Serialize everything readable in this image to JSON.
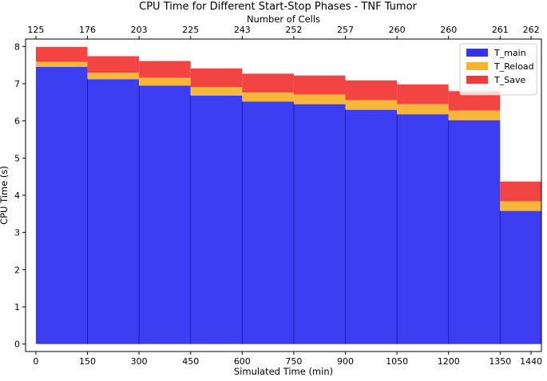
{
  "chart_data": {
    "type": "bar",
    "stacked": true,
    "title": "CPU Time for Different Start-Stop Phases - TNF Tumor",
    "xlabel": "Simulated Time (min)",
    "ylabel": "CPU Time (s)",
    "top_xlabel": "Number of Cells",
    "xlim": [
      -30,
      1470
    ],
    "ylim": [
      -0.2,
      8.2
    ],
    "x_ticks": [
      0,
      150,
      300,
      450,
      600,
      750,
      900,
      1050,
      1200,
      1350,
      1440
    ],
    "y_ticks": [
      0,
      1,
      2,
      3,
      4,
      5,
      6,
      7,
      8
    ],
    "top_ticks": [
      0,
      150,
      300,
      450,
      600,
      750,
      900,
      1050,
      1200,
      1350,
      1440
    ],
    "top_tick_labels": [
      "125",
      "176",
      "203",
      "225",
      "243",
      "252",
      "257",
      "260",
      "260",
      "261",
      "262"
    ],
    "bins": [
      {
        "start": 0,
        "end": 150
      },
      {
        "start": 150,
        "end": 300
      },
      {
        "start": 300,
        "end": 450
      },
      {
        "start": 450,
        "end": 600
      },
      {
        "start": 600,
        "end": 750
      },
      {
        "start": 750,
        "end": 900
      },
      {
        "start": 900,
        "end": 1050
      },
      {
        "start": 1050,
        "end": 1200
      },
      {
        "start": 1200,
        "end": 1350
      },
      {
        "start": 1350,
        "end": 1500
      }
    ],
    "series": [
      {
        "name": "T_main",
        "color": "#3333f0",
        "values": [
          7.45,
          7.12,
          6.95,
          6.68,
          6.52,
          6.45,
          6.3,
          6.18,
          6.02,
          3.58
        ]
      },
      {
        "name": "T_Reload",
        "color": "#f7b32d",
        "values": [
          0.14,
          0.18,
          0.21,
          0.23,
          0.24,
          0.26,
          0.26,
          0.27,
          0.26,
          0.26
        ]
      },
      {
        "name": "T_Save",
        "color": "#f23a3a",
        "values": [
          0.4,
          0.44,
          0.45,
          0.5,
          0.51,
          0.51,
          0.53,
          0.53,
          0.52,
          0.53
        ]
      }
    ],
    "legend_position": "top-right",
    "grid": false
  }
}
